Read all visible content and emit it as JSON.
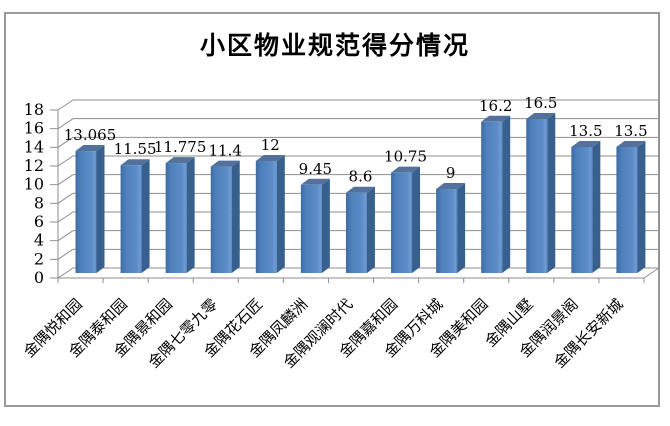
{
  "title": "小区物业规范得分情况",
  "chart_data": {
    "type": "bar",
    "style": "3d-column",
    "title": "小区物业规范得分情况",
    "categories": [
      "金隅悦和园",
      "金隅泰和园",
      "金隅景和园",
      "金隅七零九零",
      "金隅花石匠",
      "金隅凤麟洲",
      "金隅观澜时代",
      "金隅嘉和园",
      "金隅万科城",
      "金隅美和园",
      "金隅山墅",
      "金隅润景阁",
      "金隅长安新城"
    ],
    "values": [
      13.065,
      11.55,
      11.775,
      11.4,
      12,
      9.45,
      8.6,
      10.75,
      9,
      16.2,
      16.5,
      13.5,
      13.5
    ],
    "data_labels": [
      "13.065",
      "11.55",
      "11.775",
      "11.4",
      "12",
      "9.45",
      "8.6",
      "10.75",
      "9",
      "16.2",
      "16.5",
      "13.5",
      "13.5"
    ],
    "xlabel": "",
    "ylabel": "",
    "ylim": [
      0,
      18
    ],
    "ytick_step": 2,
    "ytick_labels": [
      "0",
      "2",
      "4",
      "6",
      "8",
      "10",
      "12",
      "14",
      "16",
      "18"
    ],
    "grid": true,
    "legend_position": "none",
    "colors": {
      "bar_front": "#4e80bb",
      "bar_front_dark": "#3e6ba3",
      "bar_front_light": "#6e9cd3",
      "bar_side": "#38608f",
      "bar_top": "#53719a",
      "gridline": "#8e8e8e",
      "axis": "#8e8e8e",
      "frame_border": "#9b9b9b",
      "text": "#000000"
    }
  }
}
